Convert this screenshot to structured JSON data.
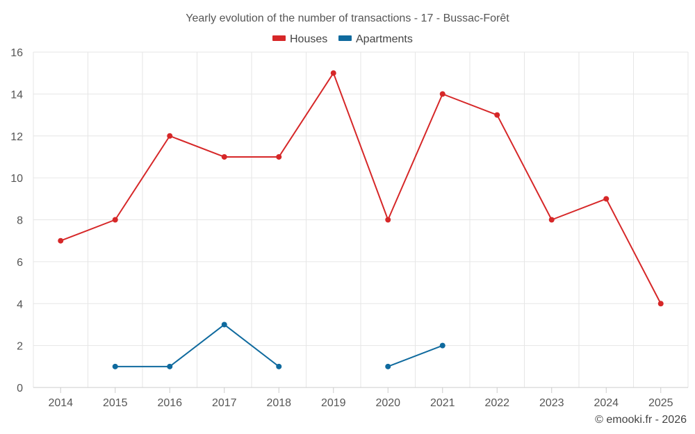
{
  "chart_data": {
    "type": "line",
    "title": "Yearly evolution of the number of transactions - 17 - Bussac-Forêt",
    "categories": [
      "2014",
      "2015",
      "2016",
      "2017",
      "2018",
      "2019",
      "2020",
      "2021",
      "2022",
      "2023",
      "2024",
      "2025"
    ],
    "ylim": [
      0,
      16
    ],
    "yticks": [
      0,
      2,
      4,
      6,
      8,
      10,
      12,
      14,
      16
    ],
    "grid": true,
    "legend_position": "top-center",
    "series": [
      {
        "name": "Houses",
        "color": "#d62728",
        "values": [
          7,
          8,
          12,
          11,
          11,
          15,
          8,
          14,
          13,
          8,
          9,
          4
        ]
      },
      {
        "name": "Apartments",
        "color": "#0f6a9e",
        "values": [
          null,
          1,
          1,
          3,
          1,
          null,
          1,
          2,
          null,
          null,
          null,
          null
        ]
      }
    ],
    "xlabel": "",
    "ylabel": ""
  },
  "credit": "© emooki.fr - 2026"
}
